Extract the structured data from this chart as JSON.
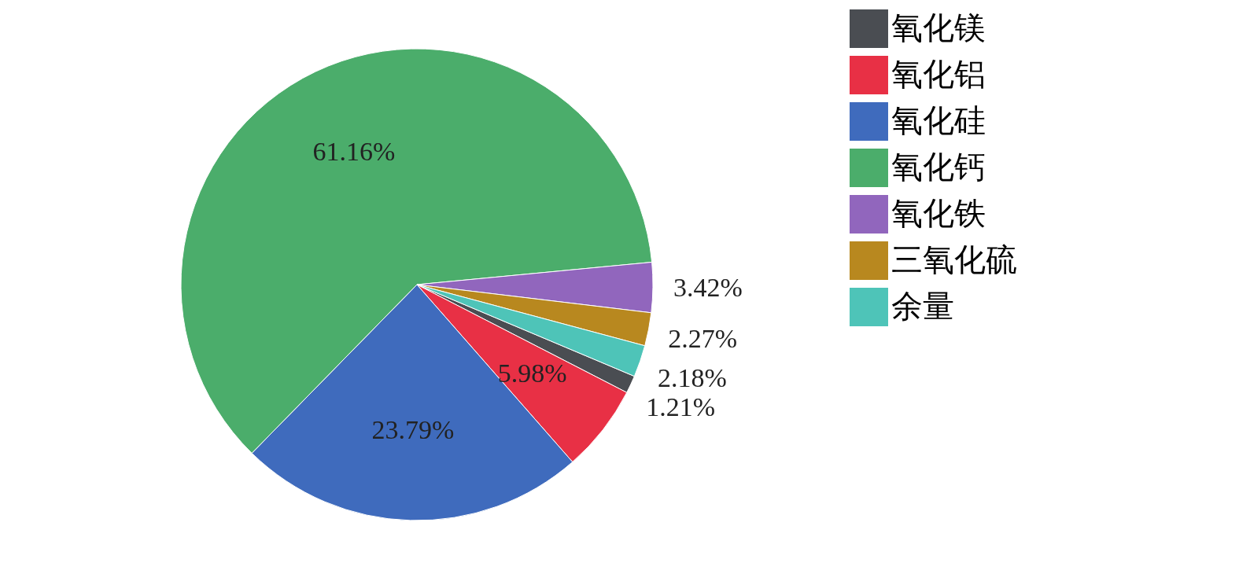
{
  "chart_data": {
    "type": "pie",
    "categories": [
      "氧化镁",
      "氧化铝",
      "氧化硅",
      "氧化钙",
      "氧化铁",
      "三氧化硫",
      "余量"
    ],
    "values": [
      1.21,
      5.98,
      23.79,
      61.16,
      3.42,
      2.27,
      2.18
    ],
    "colors": [
      "#4a4d52",
      "#e83045",
      "#3f6bbd",
      "#4bad6b",
      "#9166bd",
      "#b8881f",
      "#4ec4b8"
    ],
    "value_labels": [
      "1.21%",
      "5.98%",
      "23.79%",
      "61.16%",
      "3.42%",
      "2.27%",
      "2.18%"
    ],
    "legend": "right"
  }
}
